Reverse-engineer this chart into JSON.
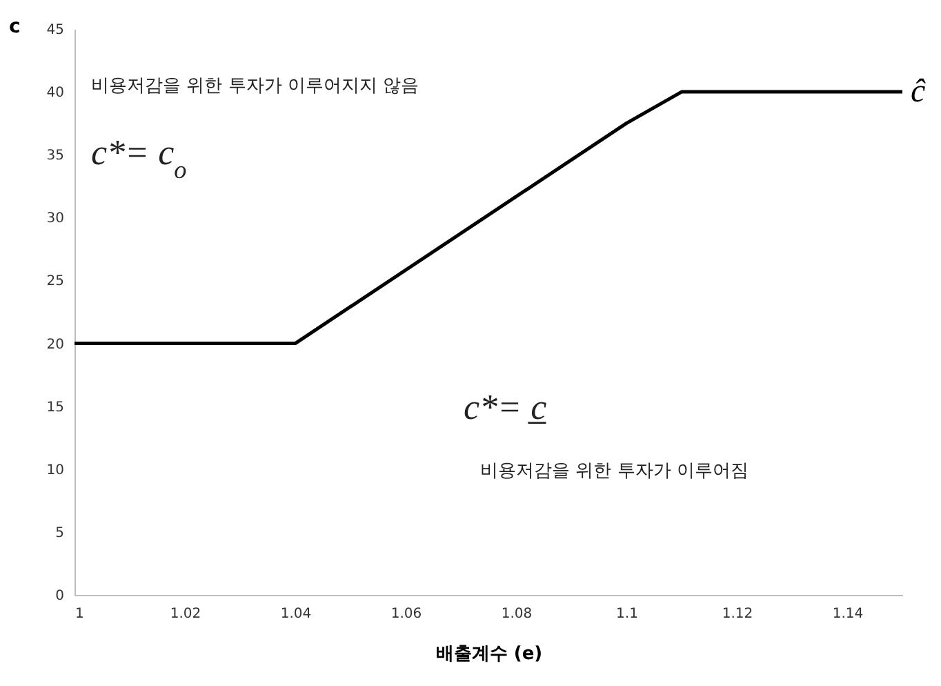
{
  "chart_data": {
    "type": "line",
    "xlabel": "배출계수 (e)",
    "ylabel": "c",
    "x": [
      1,
      1.04,
      1.1,
      1.11,
      1.15
    ],
    "series": [
      {
        "color": "#000000",
        "values": [
          20,
          20,
          37.5,
          40,
          40
        ]
      }
    ],
    "xlim": [
      1,
      1.15
    ],
    "xticks": [
      1,
      1.02,
      1.04,
      1.06,
      1.08,
      1.1,
      1.12,
      1.14
    ],
    "ylim": [
      0,
      45
    ],
    "yticks": [
      0,
      5,
      10,
      15,
      20,
      25,
      30,
      35,
      40,
      45
    ],
    "grid": false,
    "marker": "none",
    "line_style": "solid",
    "annotations": [
      "비용저감을 위한 투자가 이루어지지 않음",
      "c*= c$_{o}$",
      "c*= c̲",
      "비용저감을 위한 투자가 이루어짐",
      {
        "text": "ĉ",
        "x": 1.15,
        "y": 40
      }
    ]
  }
}
